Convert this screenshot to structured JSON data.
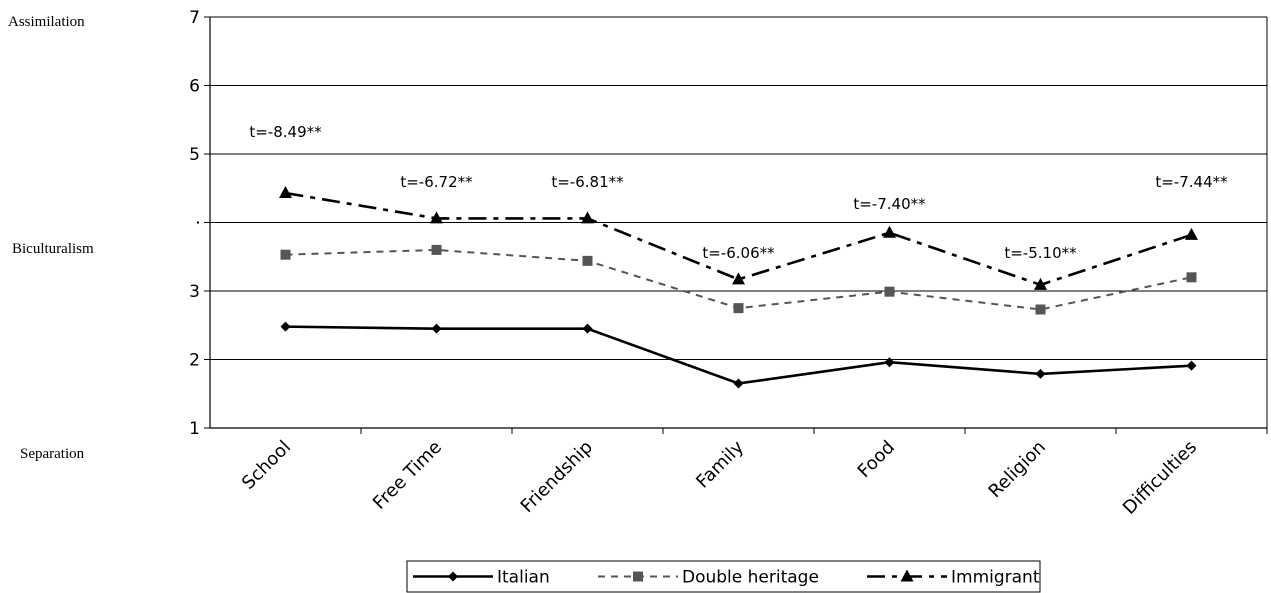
{
  "side_labels": {
    "top": "Assimilation",
    "middle": "Biculturalism",
    "bottom": "Separation"
  },
  "chart_data": {
    "type": "line",
    "title": "",
    "xlabel": "",
    "ylabel": "",
    "ylim": [
      1,
      7
    ],
    "y_ticks": [
      "1",
      "2",
      "3",
      "",
      "5",
      "6",
      "7"
    ],
    "y_tick_values": [
      1,
      2,
      3,
      4,
      5,
      6,
      7
    ],
    "grid": "horizontal",
    "legend_position": "bottom",
    "categories": [
      "School",
      "Free Time",
      "Friendship",
      "Family",
      "Food",
      "Religion",
      "Difficulties"
    ],
    "series": [
      {
        "name": "Italian",
        "values": [
          2.48,
          2.45,
          2.45,
          1.65,
          1.96,
          1.79,
          1.91
        ],
        "color": "#000000",
        "dash": "solid",
        "marker": "diamond"
      },
      {
        "name": "Double heritage",
        "values": [
          3.53,
          3.6,
          3.44,
          2.75,
          2.99,
          2.73,
          3.2
        ],
        "color": "#555555",
        "dash": "dash",
        "marker": "square"
      },
      {
        "name": "Immigrant",
        "values": [
          4.43,
          4.06,
          4.06,
          3.17,
          3.85,
          3.09,
          3.82
        ],
        "color": "#000000",
        "dash": "longdash",
        "marker": "triangle"
      }
    ],
    "annotations": [
      {
        "text": "t=-8.49**",
        "category_index": 0,
        "y": 5.25
      },
      {
        "text": "t=-6.72**",
        "category_index": 1,
        "y": 4.52
      },
      {
        "text": "t=-6.81**",
        "category_index": 2,
        "y": 4.52
      },
      {
        "text": "t=-6.06**",
        "category_index": 3,
        "y": 3.48
      },
      {
        "text": "t=-7.40**",
        "category_index": 4,
        "y": 4.2
      },
      {
        "text": "t=-5.10**",
        "category_index": 5,
        "y": 3.48
      },
      {
        "text": "t=-7.44**",
        "category_index": 6,
        "y": 4.52
      }
    ]
  }
}
